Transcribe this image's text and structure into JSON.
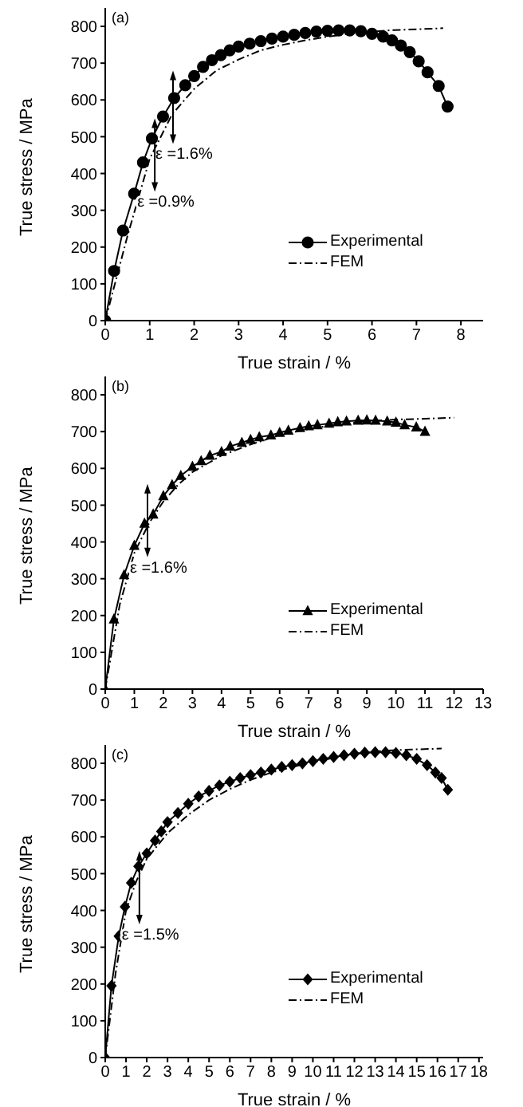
{
  "chart_data": [
    {
      "type": "line",
      "title": "(a)",
      "xlabel": "True strain / %",
      "ylabel": "True stress / MPa",
      "xlim": [
        0,
        8.5
      ],
      "xticks": [
        0,
        1,
        2,
        3,
        4,
        5,
        6,
        7,
        8
      ],
      "ylim": [
        0,
        850
      ],
      "yticks": [
        0,
        100,
        200,
        300,
        400,
        500,
        600,
        700,
        800
      ],
      "grid": false,
      "legend": "bottom right",
      "annotations": [
        {
          "text": "ε =1.6%",
          "x": 1.13,
          "y": 450
        },
        {
          "text": "ε =0.9%",
          "x": 0.72,
          "y": 320
        }
      ],
      "series": [
        {
          "name": "Experimental",
          "color": "#000000",
          "marker": "circle",
          "line_style": "solid",
          "x": [
            0,
            0.2,
            0.4,
            0.65,
            0.85,
            1.05,
            1.3,
            1.55,
            1.8,
            2.0,
            2.2,
            2.4,
            2.6,
            2.8,
            3.0,
            3.25,
            3.5,
            3.75,
            4.0,
            4.25,
            4.5,
            4.75,
            5.0,
            5.25,
            5.5,
            5.75,
            6.0,
            6.25,
            6.45,
            6.65,
            6.85,
            7.05,
            7.25,
            7.5,
            7.7
          ],
          "values": [
            0,
            135,
            245,
            345,
            430,
            495,
            555,
            605,
            640,
            665,
            690,
            708,
            722,
            735,
            745,
            753,
            760,
            767,
            772,
            777,
            782,
            786,
            788,
            789,
            789,
            787,
            780,
            772,
            762,
            748,
            730,
            705,
            675,
            638,
            582
          ]
        },
        {
          "name": "FEM",
          "color": "#000000",
          "marker": "none",
          "line_style": "dashed",
          "x": [
            0,
            0.5,
            1.0,
            1.5,
            2,
            2.5,
            3,
            3.5,
            4,
            4.5,
            5,
            5.5,
            6,
            6.5,
            7,
            7.6
          ],
          "values": [
            0,
            230,
            440,
            560,
            630,
            680,
            710,
            735,
            750,
            762,
            772,
            780,
            786,
            790,
            792,
            795
          ]
        }
      ]
    },
    {
      "type": "line",
      "title": "(b)",
      "xlabel": "True strain / %",
      "ylabel": "True stress / MPa",
      "xlim": [
        0,
        13
      ],
      "xticks": [
        0,
        1,
        2,
        3,
        4,
        5,
        6,
        7,
        8,
        9,
        10,
        11,
        12,
        13
      ],
      "ylim": [
        0,
        850
      ],
      "yticks": [
        0,
        100,
        200,
        300,
        400,
        500,
        600,
        700,
        800
      ],
      "grid": false,
      "legend": "bottom right",
      "annotations": [
        {
          "text": "ε =1.6%",
          "x": 0.85,
          "y": 328
        }
      ],
      "series": [
        {
          "name": "Experimental",
          "color": "#000000",
          "marker": "triangle",
          "line_style": "solid",
          "x": [
            0,
            0.3,
            0.65,
            1.0,
            1.35,
            1.65,
            2.0,
            2.3,
            2.6,
            3.0,
            3.3,
            3.6,
            4.0,
            4.3,
            4.7,
            5.0,
            5.3,
            5.7,
            6.0,
            6.3,
            6.7,
            7.0,
            7.3,
            7.7,
            8.0,
            8.3,
            8.7,
            9.0,
            9.3,
            9.7,
            10.0,
            10.3,
            10.7,
            11.0
          ],
          "values": [
            0,
            190,
            310,
            390,
            450,
            475,
            525,
            555,
            580,
            605,
            620,
            635,
            645,
            660,
            670,
            678,
            685,
            690,
            697,
            703,
            710,
            715,
            718,
            722,
            726,
            728,
            730,
            731,
            730,
            728,
            725,
            718,
            712,
            700
          ]
        },
        {
          "name": "FEM",
          "color": "#000000",
          "marker": "none",
          "line_style": "dashed",
          "x": [
            0,
            0.5,
            1,
            1.5,
            2,
            2.5,
            3,
            4,
            5,
            6,
            7,
            8,
            9,
            10,
            11,
            12
          ],
          "values": [
            0,
            230,
            370,
            450,
            510,
            555,
            590,
            635,
            665,
            690,
            707,
            720,
            728,
            733,
            735,
            738
          ]
        }
      ]
    },
    {
      "type": "line",
      "title": "(c)",
      "xlabel": "True strain / %",
      "ylabel": "True stress / MPa",
      "xlim": [
        0,
        18.2
      ],
      "xticks": [
        0,
        1,
        2,
        3,
        4,
        5,
        6,
        7,
        8,
        9,
        10,
        11,
        12,
        13,
        14,
        15,
        16,
        17,
        18
      ],
      "ylim": [
        0,
        850
      ],
      "yticks": [
        0,
        100,
        200,
        300,
        400,
        500,
        600,
        700,
        800
      ],
      "grid": false,
      "legend": "bottom right",
      "annotations": [
        {
          "text": "ε =1.5%",
          "x": 0.8,
          "y": 332
        }
      ],
      "series": [
        {
          "name": "Experimental",
          "color": "#000000",
          "marker": "diamond",
          "line_style": "solid",
          "x": [
            0,
            0.3,
            0.65,
            0.95,
            1.25,
            1.6,
            2.0,
            2.4,
            2.7,
            3.0,
            3.5,
            4,
            4.5,
            5,
            5.5,
            6,
            6.5,
            7,
            7.5,
            8,
            8.5,
            9,
            9.5,
            10,
            10.5,
            11,
            11.5,
            12,
            12.5,
            13,
            13.5,
            14,
            14.5,
            15,
            15.5,
            15.9,
            16.2,
            16.5
          ],
          "values": [
            0,
            195,
            330,
            410,
            475,
            520,
            555,
            590,
            615,
            640,
            665,
            690,
            710,
            725,
            740,
            750,
            760,
            768,
            775,
            783,
            790,
            795,
            800,
            806,
            812,
            817,
            822,
            826,
            829,
            830,
            830,
            828,
            822,
            812,
            795,
            775,
            760,
            728
          ]
        },
        {
          "name": "FEM",
          "color": "#000000",
          "marker": "none",
          "line_style": "dashed",
          "x": [
            0,
            0.5,
            1,
            1.5,
            2,
            3,
            4,
            5,
            6,
            7,
            8,
            9,
            10,
            11,
            12,
            13,
            14,
            15,
            16.2
          ],
          "values": [
            0,
            230,
            400,
            480,
            540,
            610,
            660,
            700,
            730,
            755,
            775,
            790,
            803,
            815,
            825,
            832,
            836,
            838,
            840
          ]
        }
      ]
    }
  ]
}
